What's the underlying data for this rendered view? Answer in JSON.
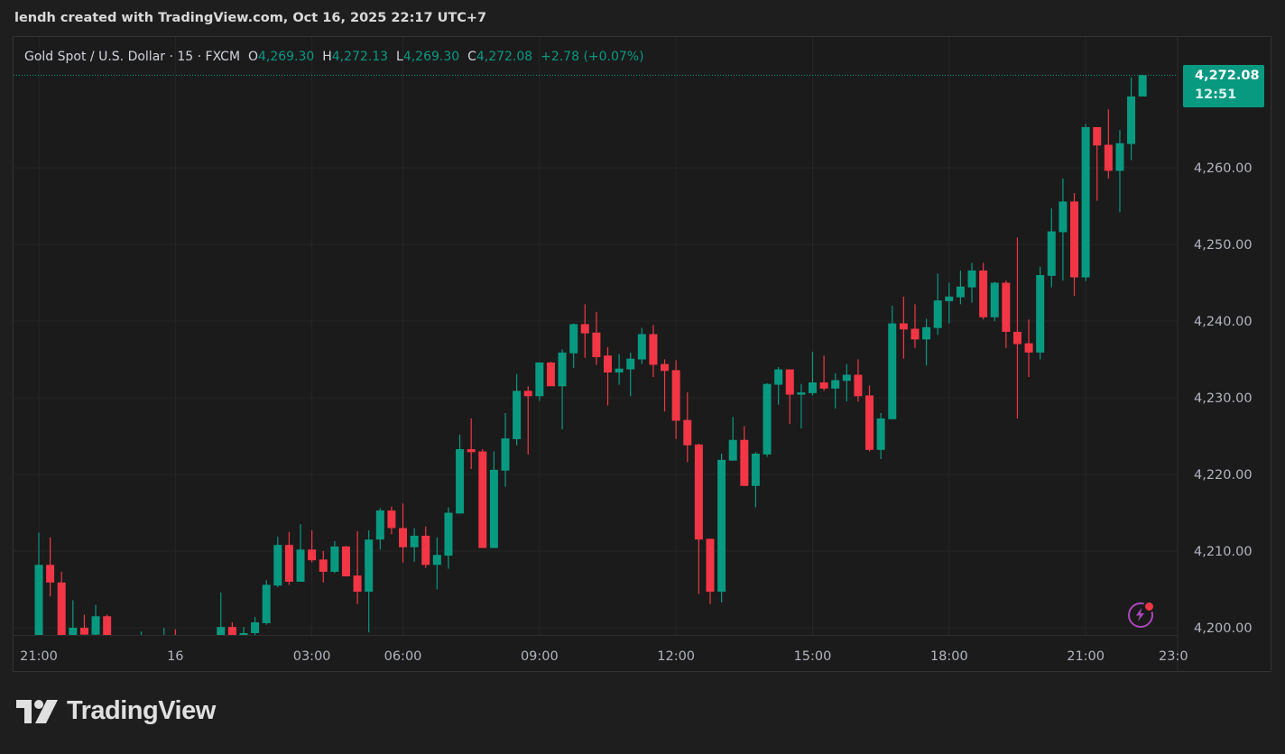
{
  "header": {
    "title": "lendh created with TradingView.com, Oct 16, 2025 22:17 UTC+7"
  },
  "legend": {
    "symbol": "Gold Spot / U.S. Dollar · 15 · FXCM",
    "o_label": "O",
    "o": "4,269.30",
    "h_label": "H",
    "h": "4,272.13",
    "l_label": "L",
    "l": "4,269.30",
    "c_label": "C",
    "c": "4,272.08",
    "change": "+2.78 (+0.07%)"
  },
  "last_price": {
    "price": "4,272.08",
    "countdown": "12:51"
  },
  "logo": {
    "text": "TradingView"
  },
  "colors": {
    "up": "#089981",
    "down": "#f23645",
    "background": "#1b1b1b",
    "grid": "#262626",
    "alert_icon": "#ab47bc"
  },
  "icons": {
    "alert": "lightning-bolt-icon",
    "logo": "tradingview-logo-icon"
  },
  "chart_data": {
    "type": "candlestick",
    "title": "Gold Spot / U.S. Dollar · 15 · FXCM",
    "ylim": [
      4197,
      4276
    ],
    "y_ticks": [
      4200,
      4210,
      4220,
      4230,
      4240,
      4250,
      4260
    ],
    "y_tick_labels": [
      "4,200.00",
      "4,210.00",
      "4,220.00",
      "4,230.00",
      "4,240.00",
      "4,250.00",
      "4,260.00"
    ],
    "x_ticks": [
      {
        "label": "21:00",
        "time": "2025-10-15T21:00"
      },
      {
        "label": "16",
        "time": "2025-10-16T00:00"
      },
      {
        "label": "03:00",
        "time": "2025-10-16T03:00"
      },
      {
        "label": "06:00",
        "time": "2025-10-16T06:00"
      },
      {
        "label": "09:00",
        "time": "2025-10-16T09:00"
      },
      {
        "label": "12:00",
        "time": "2025-10-16T12:00"
      },
      {
        "label": "15:00",
        "time": "2025-10-16T15:00"
      },
      {
        "label": "18:00",
        "time": "2025-10-16T18:00"
      },
      {
        "label": "21:00",
        "time": "2025-10-16T21:00"
      },
      {
        "label": "23:0",
        "time": "2025-10-16T23:00"
      }
    ],
    "grid": true,
    "last_price_line": 4272.08,
    "columns": [
      "time",
      "open",
      "high",
      "low",
      "close"
    ],
    "candles": [
      [
        "2025-10-15T21:00",
        4198.5,
        4212.4,
        4197.8,
        4208.2
      ],
      [
        "2025-10-15T21:15",
        4208.2,
        4211.8,
        4204.1,
        4205.9
      ],
      [
        "2025-10-15T21:30",
        4205.9,
        4207.3,
        4197.5,
        4198.3
      ],
      [
        "2025-10-15T21:45",
        4198.3,
        4203.6,
        4197.9,
        4200.0
      ],
      [
        "2025-10-15T22:00",
        4200.0,
        4201.7,
        4198.4,
        4199.1
      ],
      [
        "2025-10-15T22:15",
        4199.1,
        4203.0,
        4198.6,
        4201.5
      ],
      [
        "2025-10-15T22:30",
        4201.5,
        4201.7,
        4198.2,
        4198.6
      ],
      [
        "2025-10-15T22:45",
        4198.6,
        4198.9,
        4197.6,
        4198.0
      ],
      [
        "2025-10-15T23:00",
        4198.0,
        4198.7,
        4197.5,
        4198.2
      ],
      [
        "2025-10-15T23:15",
        4198.2,
        4199.5,
        4197.9,
        4198.6
      ],
      [
        "2025-10-15T23:30",
        4198.6,
        4198.9,
        4197.8,
        4198.4
      ],
      [
        "2025-10-15T23:45",
        4198.4,
        4200.0,
        4198.0,
        4199.0
      ],
      [
        "2025-10-16T00:00",
        4199.0,
        4199.8,
        4198.2,
        4198.5
      ],
      [
        "2025-10-16T00:15",
        4198.5,
        4198.9,
        4197.6,
        4198.1
      ],
      [
        "2025-10-16T00:30",
        4198.1,
        4198.8,
        4197.4,
        4197.9
      ],
      [
        "2025-10-16T00:45",
        4197.9,
        4198.8,
        4197.3,
        4198.3
      ],
      [
        "2025-10-16T01:00",
        4198.3,
        4204.6,
        4198.0,
        4200.1
      ],
      [
        "2025-10-16T01:15",
        4200.1,
        4200.7,
        4198.6,
        4199.0
      ],
      [
        "2025-10-16T01:30",
        4199.0,
        4200.1,
        4198.2,
        4199.3
      ],
      [
        "2025-10-16T01:45",
        4199.3,
        4201.4,
        4198.8,
        4200.7
      ],
      [
        "2025-10-16T02:00",
        4200.6,
        4206.2,
        4200.4,
        4205.6
      ],
      [
        "2025-10-16T02:15",
        4205.5,
        4211.9,
        4205.3,
        4210.8
      ],
      [
        "2025-10-16T02:30",
        4210.8,
        4212.5,
        4205.6,
        4206.0
      ],
      [
        "2025-10-16T02:45",
        4206.0,
        4213.5,
        4206.0,
        4210.2
      ],
      [
        "2025-10-16T03:00",
        4210.2,
        4212.7,
        4208.5,
        4208.8
      ],
      [
        "2025-10-16T03:15",
        4208.9,
        4210.0,
        4205.9,
        4207.3
      ],
      [
        "2025-10-16T03:30",
        4207.3,
        4211.3,
        4207.1,
        4210.6
      ],
      [
        "2025-10-16T03:45",
        4210.6,
        4210.7,
        4206.7,
        4206.7
      ],
      [
        "2025-10-16T05:00",
        4206.8,
        4212.6,
        4203.1,
        4204.7
      ],
      [
        "2025-10-16T05:15",
        4204.7,
        4212.7,
        4199.4,
        4211.5
      ],
      [
        "2025-10-16T05:30",
        4211.5,
        4215.6,
        4210.2,
        4215.3
      ],
      [
        "2025-10-16T05:45",
        4215.3,
        4215.8,
        4212.2,
        4213.0
      ],
      [
        "2025-10-16T06:00",
        4213.0,
        4216.2,
        4208.5,
        4210.5
      ],
      [
        "2025-10-16T06:15",
        4210.5,
        4213.0,
        4208.6,
        4212.0
      ],
      [
        "2025-10-16T06:30",
        4212.0,
        4213.2,
        4207.8,
        4208.2
      ],
      [
        "2025-10-16T06:45",
        4208.2,
        4211.8,
        4205.0,
        4209.5
      ],
      [
        "2025-10-16T07:00",
        4209.4,
        4215.7,
        4207.7,
        4215.0
      ],
      [
        "2025-10-16T07:15",
        4214.9,
        4225.2,
        4214.9,
        4223.3
      ],
      [
        "2025-10-16T07:30",
        4223.3,
        4227.3,
        4220.7,
        4222.9
      ],
      [
        "2025-10-16T07:45",
        4223.0,
        4223.3,
        4210.4,
        4210.4
      ],
      [
        "2025-10-16T08:00",
        4210.4,
        4223.0,
        4210.4,
        4220.6
      ],
      [
        "2025-10-16T08:15",
        4220.5,
        4228.0,
        4218.4,
        4224.7
      ],
      [
        "2025-10-16T08:30",
        4224.6,
        4233.1,
        4223.8,
        4230.9
      ],
      [
        "2025-10-16T08:45",
        4230.9,
        4231.5,
        4222.6,
        4230.2
      ],
      [
        "2025-10-16T09:00",
        4230.2,
        4234.6,
        4229.6,
        4234.6
      ],
      [
        "2025-10-16T09:15",
        4234.6,
        4234.7,
        4231.5,
        4231.5
      ],
      [
        "2025-10-16T09:30",
        4231.5,
        4236.3,
        4225.9,
        4235.9
      ],
      [
        "2025-10-16T09:45",
        4235.8,
        4239.7,
        4233.9,
        4239.6
      ],
      [
        "2025-10-16T10:00",
        4239.6,
        4242.2,
        4235.2,
        4238.4
      ],
      [
        "2025-10-16T10:15",
        4238.5,
        4241.2,
        4234.3,
        4235.3
      ],
      [
        "2025-10-16T10:30",
        4235.5,
        4236.6,
        4229.0,
        4233.3
      ],
      [
        "2025-10-16T10:45",
        4233.3,
        4235.7,
        4231.7,
        4233.8
      ],
      [
        "2025-10-16T11:00",
        4233.7,
        4235.9,
        4230.2,
        4235.1
      ],
      [
        "2025-10-16T11:15",
        4235.0,
        4239.1,
        4234.4,
        4238.3
      ],
      [
        "2025-10-16T11:30",
        4238.3,
        4239.5,
        4232.7,
        4234.3
      ],
      [
        "2025-10-16T11:45",
        4234.4,
        4235.0,
        4228.2,
        4233.5
      ],
      [
        "2025-10-16T12:00",
        4233.6,
        4234.9,
        4224.6,
        4227.0
      ],
      [
        "2025-10-16T12:15",
        4227.1,
        4230.7,
        4221.6,
        4223.8
      ],
      [
        "2025-10-16T12:30",
        4223.9,
        4224.0,
        4204.4,
        4211.5
      ],
      [
        "2025-10-16T12:45",
        4211.6,
        4211.6,
        4203.1,
        4204.7
      ],
      [
        "2025-10-16T13:00",
        4204.7,
        4222.7,
        4203.3,
        4221.9
      ],
      [
        "2025-10-16T13:15",
        4221.8,
        4227.5,
        4221.8,
        4224.5
      ],
      [
        "2025-10-16T13:30",
        4224.5,
        4226.3,
        4218.5,
        4218.5
      ],
      [
        "2025-10-16T13:45",
        4218.5,
        4222.9,
        4215.7,
        4222.7
      ],
      [
        "2025-10-16T14:00",
        4222.6,
        4231.9,
        4222.3,
        4231.8
      ],
      [
        "2025-10-16T14:15",
        4231.7,
        4234.0,
        4229.1,
        4233.7
      ],
      [
        "2025-10-16T14:30",
        4233.7,
        4233.7,
        4226.6,
        4230.4
      ],
      [
        "2025-10-16T14:45",
        4230.4,
        4231.8,
        4226.0,
        4230.7
      ],
      [
        "2025-10-16T15:00",
        4230.6,
        4236.0,
        4230.3,
        4232.0
      ],
      [
        "2025-10-16T15:15",
        4232.0,
        4235.5,
        4230.9,
        4231.2
      ],
      [
        "2025-10-16T15:30",
        4231.2,
        4233.2,
        4228.6,
        4232.3
      ],
      [
        "2025-10-16T15:45",
        4232.2,
        4234.4,
        4229.5,
        4233.0
      ],
      [
        "2025-10-16T16:00",
        4233.0,
        4235.0,
        4229.5,
        4230.2
      ],
      [
        "2025-10-16T16:15",
        4230.3,
        4231.6,
        4223.0,
        4223.2
      ],
      [
        "2025-10-16T16:30",
        4223.2,
        4228.0,
        4222.0,
        4227.3
      ],
      [
        "2025-10-16T16:45",
        4227.2,
        4242.0,
        4227.2,
        4239.7
      ],
      [
        "2025-10-16T17:00",
        4239.7,
        4243.2,
        4235.1,
        4238.9
      ],
      [
        "2025-10-16T17:15",
        4239.0,
        4242.2,
        4236.5,
        4237.6
      ],
      [
        "2025-10-16T17:30",
        4237.6,
        4240.3,
        4234.2,
        4239.2
      ],
      [
        "2025-10-16T17:45",
        4239.1,
        4246.2,
        4238.2,
        4242.7
      ],
      [
        "2025-10-16T18:00",
        4242.6,
        4245.0,
        4239.7,
        4243.2
      ],
      [
        "2025-10-16T18:15",
        4243.1,
        4246.6,
        4242.2,
        4244.5
      ],
      [
        "2025-10-16T18:30",
        4244.4,
        4247.6,
        4242.4,
        4246.6
      ],
      [
        "2025-10-16T18:45",
        4246.6,
        4247.6,
        4240.2,
        4240.5
      ],
      [
        "2025-10-16T19:00",
        4240.5,
        4245.1,
        4240.0,
        4245.0
      ],
      [
        "2025-10-16T19:15",
        4245.0,
        4245.3,
        4236.5,
        4238.6
      ],
      [
        "2025-10-16T19:30",
        4238.6,
        4250.9,
        4227.3,
        4237.0
      ],
      [
        "2025-10-16T19:45",
        4237.1,
        4240.2,
        4232.7,
        4235.9
      ],
      [
        "2025-10-16T20:00",
        4235.9,
        4247.1,
        4235.0,
        4246.0
      ],
      [
        "2025-10-16T20:15",
        4245.9,
        4254.7,
        4244.4,
        4251.7
      ],
      [
        "2025-10-16T20:30",
        4251.6,
        4258.6,
        4245.3,
        4255.6
      ],
      [
        "2025-10-16T20:45",
        4255.6,
        4256.7,
        4243.3,
        4245.7
      ],
      [
        "2025-10-16T21:00",
        4245.7,
        4265.7,
        4245.2,
        4265.3
      ],
      [
        "2025-10-16T21:15",
        4265.3,
        4265.3,
        4255.7,
        4262.9
      ],
      [
        "2025-10-16T21:30",
        4263.0,
        4267.6,
        4258.6,
        4259.6
      ],
      [
        "2025-10-16T21:45",
        4259.6,
        4264.9,
        4254.2,
        4263.2
      ],
      [
        "2025-10-16T22:00",
        4263.1,
        4271.8,
        4261.0,
        4269.3
      ],
      [
        "2025-10-16T22:15",
        4269.3,
        4272.13,
        4269.3,
        4272.08
      ]
    ]
  }
}
